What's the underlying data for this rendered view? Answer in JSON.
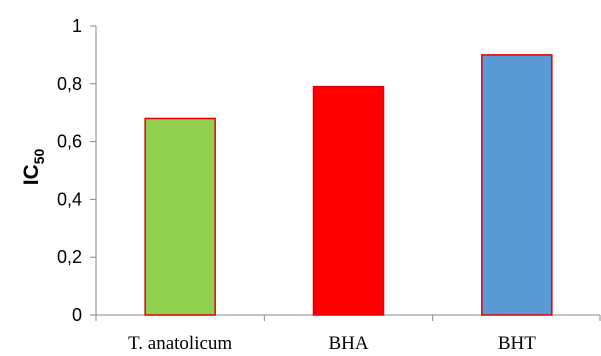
{
  "chart_data": {
    "type": "bar",
    "title": "",
    "xlabel": "",
    "ylabel": "IC",
    "ylabel_subscript": "50",
    "categories": [
      "T. anatolicum",
      "BHA",
      "BHT"
    ],
    "values": [
      0.68,
      0.79,
      0.9
    ],
    "ylim": [
      0,
      1
    ],
    "yticks": [
      0,
      0.2,
      0.4,
      0.6,
      0.8,
      1
    ],
    "ytick_labels": [
      "0",
      "0,2",
      "0,4",
      "0,6",
      "0,8",
      "1"
    ],
    "grid": false,
    "legend": "none",
    "bar_fills": [
      "#92d050",
      "#ff0000",
      "#5b9bd5"
    ],
    "bar_outline": "#e00000"
  }
}
